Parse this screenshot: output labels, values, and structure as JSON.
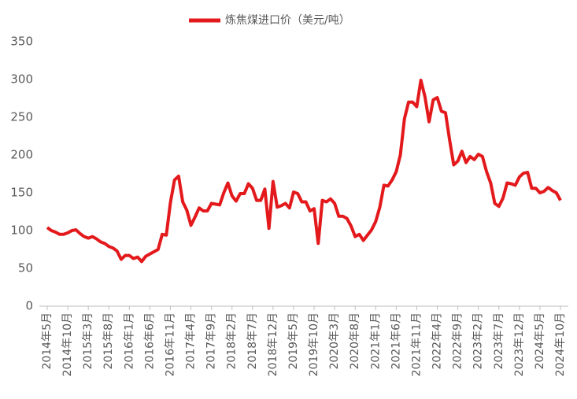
{
  "chart_data": {
    "type": "line",
    "categories": [
      "2014年5月",
      null,
      null,
      null,
      null,
      "2014年10月",
      null,
      null,
      null,
      null,
      "2015年3月",
      null,
      null,
      null,
      null,
      "2015年8月",
      null,
      null,
      null,
      null,
      "2016年1月",
      null,
      null,
      null,
      null,
      "2016年6月",
      null,
      null,
      null,
      null,
      "2016年11月",
      null,
      null,
      null,
      null,
      "2017年4月",
      null,
      null,
      null,
      null,
      "2017年9月",
      null,
      null,
      null,
      null,
      "2018年2月",
      null,
      null,
      null,
      null,
      "2018年7月",
      null,
      null,
      null,
      null,
      "2018年12月",
      null,
      null,
      null,
      null,
      "2019年5月",
      null,
      null,
      null,
      null,
      "2019年10月",
      null,
      null,
      null,
      null,
      "2020年3月",
      null,
      null,
      null,
      null,
      "2020年8月",
      null,
      null,
      null,
      null,
      "2021年1月",
      null,
      null,
      null,
      null,
      "2021年6月",
      null,
      null,
      null,
      null,
      "2021年11月",
      null,
      null,
      null,
      null,
      "2022年4月",
      null,
      null,
      null,
      null,
      "2022年9月",
      null,
      null,
      null,
      null,
      "2023年2月",
      null,
      null,
      null,
      null,
      "2023年7月",
      null,
      null,
      null,
      null,
      "2023年12月",
      null,
      null,
      null,
      null,
      "2024年5月",
      null,
      null,
      null,
      null,
      "2024年10月"
    ],
    "series": [
      {
        "name": "炼焦煤进口价（美元/吨）",
        "color": "#e3191c",
        "values": [
          104,
          100,
          98,
          95,
          95,
          97,
          100,
          101,
          96,
          92,
          90,
          92,
          89,
          85,
          83,
          79,
          77,
          73,
          62,
          67,
          67,
          63,
          65,
          59,
          66,
          69,
          72,
          75,
          95,
          94,
          137,
          167,
          172,
          138,
          127,
          107,
          118,
          130,
          126,
          126,
          136,
          135,
          134,
          150,
          163,
          146,
          139,
          149,
          149,
          162,
          156,
          140,
          140,
          155,
          103,
          165,
          131,
          133,
          136,
          130,
          151,
          149,
          138,
          138,
          126,
          129,
          83,
          140,
          138,
          142,
          136,
          119,
          119,
          116,
          106,
          92,
          95,
          87,
          94,
          101,
          112,
          131,
          160,
          159,
          167,
          178,
          200,
          248,
          270,
          270,
          264,
          299,
          277,
          244,
          273,
          276,
          258,
          256,
          220,
          187,
          192,
          205,
          190,
          198,
          194,
          201,
          198,
          178,
          163,
          136,
          132,
          143,
          163,
          162,
          160,
          171,
          176,
          177,
          156,
          156,
          150,
          152,
          157,
          153,
          150,
          140
        ]
      }
    ],
    "ylim": [
      0,
      350
    ],
    "yticks": [
      0,
      50,
      100,
      150,
      200,
      250,
      300,
      350
    ],
    "legend": "top",
    "grid": false
  }
}
